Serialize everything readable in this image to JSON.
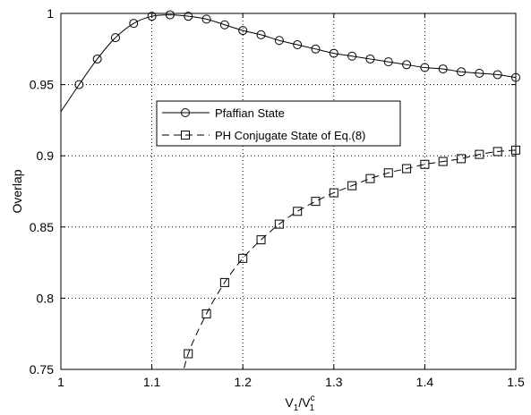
{
  "chart_data": {
    "type": "line",
    "xlabel_main": "V",
    "xlabel_sub1": "1",
    "xlabel_mid": "/V",
    "xlabel_sup": "c",
    "xlabel_sub2": "1",
    "ylabel": "Overlap",
    "xlim": [
      1,
      1.5
    ],
    "ylim": [
      0.75,
      1
    ],
    "x_ticks": [
      "1",
      "1.1",
      "1.2",
      "1.3",
      "1.4",
      "1.5"
    ],
    "y_ticks": [
      "0.75",
      "0.8",
      "0.85",
      "0.9",
      "0.95",
      "1"
    ],
    "grid": true,
    "legend_position": "center-left",
    "series": [
      {
        "name": "Pfaffian State",
        "line_style": "solid",
        "marker": "circle",
        "color": "#000000",
        "curve_x": [
          1.0,
          1.02,
          1.04,
          1.06,
          1.08,
          1.1,
          1.12,
          1.14,
          1.16,
          1.18,
          1.2,
          1.22,
          1.24,
          1.26,
          1.28,
          1.3,
          1.32,
          1.34,
          1.36,
          1.38,
          1.4,
          1.42,
          1.44,
          1.46,
          1.48,
          1.5
        ],
        "curve_y": [
          0.931,
          0.95,
          0.968,
          0.983,
          0.993,
          0.998,
          0.999,
          0.998,
          0.996,
          0.992,
          0.988,
          0.985,
          0.981,
          0.978,
          0.975,
          0.972,
          0.97,
          0.968,
          0.966,
          0.964,
          0.962,
          0.961,
          0.959,
          0.958,
          0.957,
          0.955
        ],
        "marker_x": [
          1.02,
          1.04,
          1.06,
          1.08,
          1.1,
          1.12,
          1.14,
          1.16,
          1.18,
          1.2,
          1.22,
          1.24,
          1.26,
          1.28,
          1.3,
          1.32,
          1.34,
          1.36,
          1.38,
          1.4,
          1.42,
          1.44,
          1.46,
          1.48,
          1.5
        ],
        "marker_y": [
          0.95,
          0.968,
          0.983,
          0.993,
          0.998,
          0.999,
          0.998,
          0.996,
          0.992,
          0.988,
          0.985,
          0.981,
          0.978,
          0.975,
          0.972,
          0.97,
          0.968,
          0.966,
          0.964,
          0.962,
          0.961,
          0.959,
          0.958,
          0.957,
          0.955
        ]
      },
      {
        "name": "PH Conjugate State of Eq.(8)",
        "line_style": "dashed",
        "marker": "square",
        "color": "#000000",
        "curve_x": [
          1.13,
          1.14,
          1.16,
          1.18,
          1.2,
          1.22,
          1.24,
          1.26,
          1.28,
          1.3,
          1.32,
          1.34,
          1.36,
          1.38,
          1.4,
          1.42,
          1.44,
          1.46,
          1.48,
          1.5
        ],
        "curve_y": [
          0.735,
          0.761,
          0.789,
          0.811,
          0.828,
          0.841,
          0.852,
          0.861,
          0.868,
          0.874,
          0.879,
          0.884,
          0.888,
          0.891,
          0.894,
          0.896,
          0.898,
          0.901,
          0.903,
          0.904
        ],
        "marker_x": [
          1.14,
          1.16,
          1.18,
          1.2,
          1.22,
          1.24,
          1.26,
          1.28,
          1.3,
          1.32,
          1.34,
          1.36,
          1.38,
          1.4,
          1.42,
          1.44,
          1.46,
          1.48,
          1.5
        ],
        "marker_y": [
          0.761,
          0.789,
          0.811,
          0.828,
          0.841,
          0.852,
          0.861,
          0.868,
          0.874,
          0.879,
          0.884,
          0.888,
          0.891,
          0.894,
          0.896,
          0.898,
          0.901,
          0.903,
          0.904
        ]
      }
    ]
  }
}
